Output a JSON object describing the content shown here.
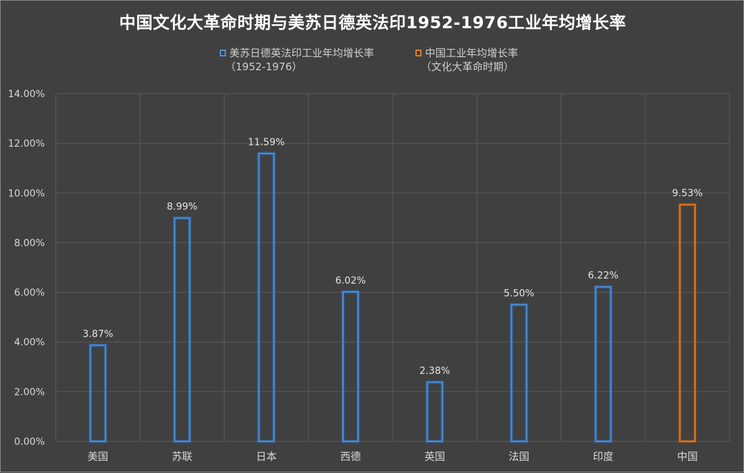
{
  "chart_data": {
    "type": "bar",
    "title": "中国文化大革命时期与美苏日德英法印1952-1976工业年均增长率",
    "categories": [
      "美国",
      "苏联",
      "日本",
      "西德",
      "英国",
      "法国",
      "印度",
      "中国"
    ],
    "series": [
      {
        "name": "美苏日德英法印工业年均增长率",
        "name_sub": "（1952-1976）",
        "color": "#4a90d9",
        "values": [
          3.87,
          8.99,
          11.59,
          6.02,
          2.38,
          5.5,
          6.22,
          null
        ]
      },
      {
        "name": "中国工业年均增长率",
        "name_sub": "（文化大革命时期）",
        "color": "#e07b2a",
        "values": [
          null,
          null,
          null,
          null,
          null,
          null,
          null,
          9.53
        ]
      }
    ],
    "data_labels": [
      "3.87%",
      "8.99%",
      "11.59%",
      "6.02%",
      "2.38%",
      "5.50%",
      "6.22%",
      "9.53%"
    ],
    "yticks": [
      "0.00%",
      "2.00%",
      "4.00%",
      "6.00%",
      "8.00%",
      "10.00%",
      "12.00%",
      "14.00%"
    ],
    "ylim": [
      0,
      14
    ],
    "grid": true,
    "legend_position": "top"
  }
}
